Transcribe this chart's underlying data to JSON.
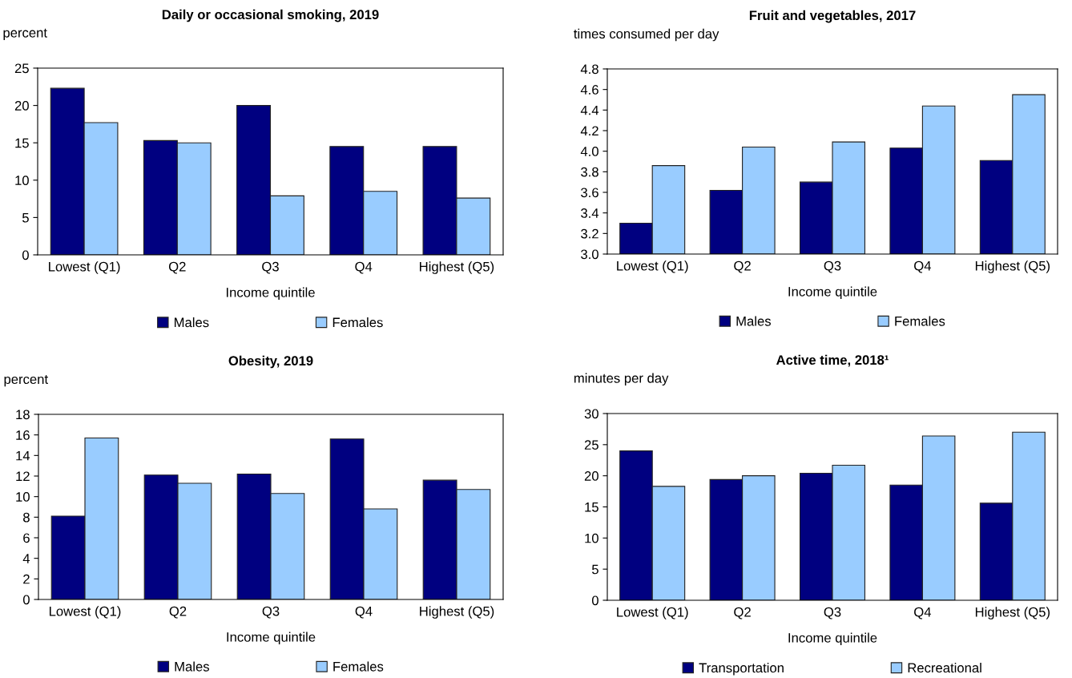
{
  "chart_data": [
    {
      "type": "bar",
      "title": "Daily or occasional smoking, 2019",
      "ylabel": "percent",
      "xlabel": "Income quintile",
      "categories": [
        "Lowest (Q1)",
        "Q2",
        "Q3",
        "Q4",
        "Highest (Q5)"
      ],
      "series": [
        {
          "name": "Males",
          "color": "#000080",
          "values": [
            22.3,
            15.3,
            20.0,
            14.5,
            14.5
          ]
        },
        {
          "name": "Females",
          "color": "#99ccff",
          "values": [
            17.7,
            15.0,
            7.9,
            8.5,
            7.6
          ]
        }
      ],
      "ylim": [
        0,
        25
      ],
      "yticks": [
        0,
        5,
        10,
        15,
        20,
        25
      ],
      "legend": "bottom",
      "grid": false
    },
    {
      "type": "bar",
      "title": "Fruit and vegetables, 2017",
      "ylabel": "times consumed per day",
      "xlabel": "Income quintile",
      "categories": [
        "Lowest (Q1)",
        "Q2",
        "Q3",
        "Q4",
        "Highest (Q5)"
      ],
      "series": [
        {
          "name": "Males",
          "color": "#000080",
          "values": [
            3.3,
            3.62,
            3.7,
            4.03,
            3.91
          ]
        },
        {
          "name": "Females",
          "color": "#99ccff",
          "values": [
            3.86,
            4.04,
            4.09,
            4.44,
            4.55
          ]
        }
      ],
      "ylim": [
        3.0,
        4.8
      ],
      "yticks": [
        {
          "value": 3.0,
          "label": "3.0"
        },
        3.2,
        3.4,
        3.6,
        3.8,
        {
          "value": 4.0,
          "label": "4.0"
        },
        4.2,
        4.4,
        4.6,
        4.8
      ],
      "legend": "bottom",
      "grid": false
    },
    {
      "type": "bar",
      "title": "Obesity, 2019",
      "ylabel": "percent",
      "xlabel": "Income quintile",
      "categories": [
        "Lowest (Q1)",
        "Q2",
        "Q3",
        "Q4",
        "Highest (Q5)"
      ],
      "series": [
        {
          "name": "Males",
          "color": "#000080",
          "values": [
            8.1,
            12.1,
            12.2,
            15.6,
            11.6
          ]
        },
        {
          "name": "Females",
          "color": "#99ccff",
          "values": [
            15.7,
            11.3,
            10.3,
            8.8,
            10.7
          ]
        }
      ],
      "ylim": [
        0,
        18
      ],
      "yticks": [
        0,
        2,
        4,
        6,
        8,
        10,
        12,
        14,
        16,
        18
      ],
      "legend": "bottom",
      "grid": false
    },
    {
      "type": "bar",
      "title": "Active time, 2018¹",
      "ylabel": "minutes per day",
      "xlabel": "Income quintile",
      "categories": [
        "Lowest (Q1)",
        "Q2",
        "Q3",
        "Q4",
        "Highest (Q5)"
      ],
      "series": [
        {
          "name": "Transportation",
          "color": "#000080",
          "values": [
            24.0,
            19.4,
            20.4,
            18.5,
            15.6
          ]
        },
        {
          "name": "Recreational",
          "color": "#99ccff",
          "values": [
            18.3,
            20.0,
            21.7,
            26.4,
            27.0
          ]
        }
      ],
      "ylim": [
        0,
        30
      ],
      "yticks": [
        0,
        5,
        10,
        15,
        20,
        25,
        30
      ],
      "legend": "bottom",
      "grid": false
    }
  ]
}
